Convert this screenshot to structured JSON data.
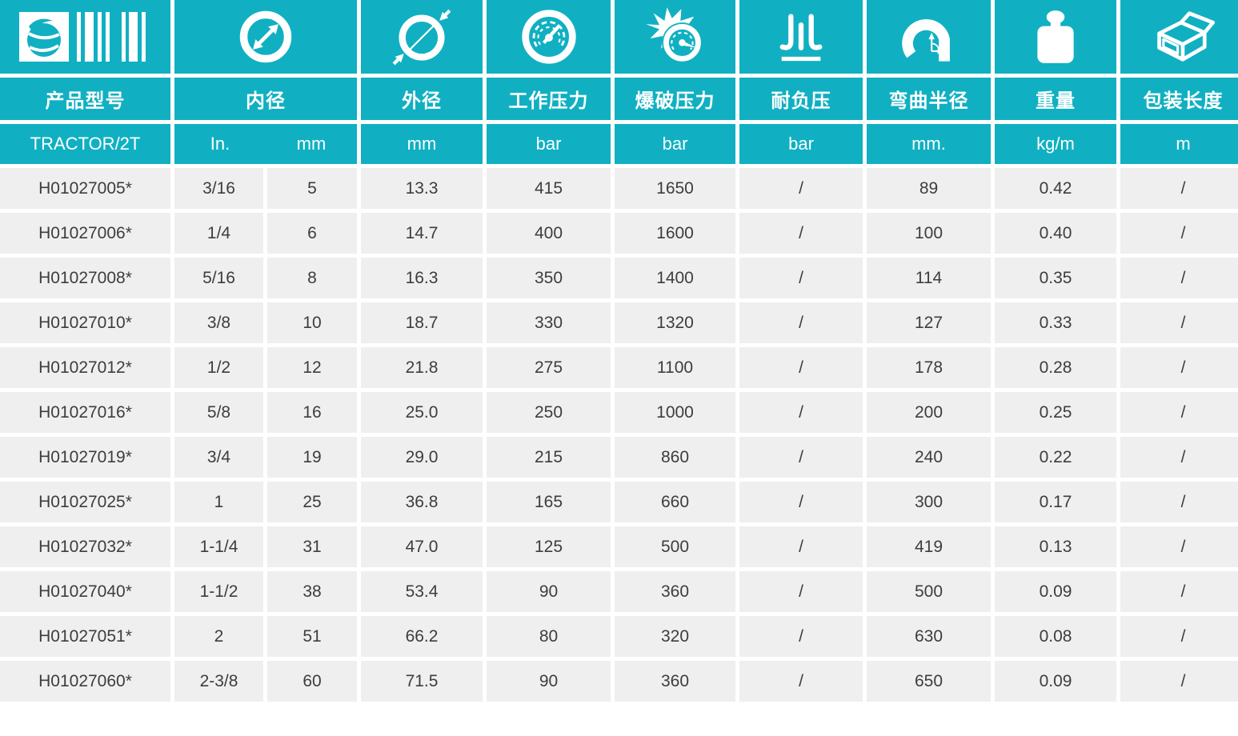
{
  "theme": {
    "accent_teal": "#10b0c2",
    "row_background": "#efefef",
    "data_text": "#3d3d3d",
    "gap_white": "#ffffff"
  },
  "columns": [
    {
      "id": "model",
      "icon": "barcode-globe-icon",
      "header": "产品型号",
      "unit": "TRACTOR/2T"
    },
    {
      "id": "inner-diameter",
      "icon": "inner-diameter-icon",
      "header": "内径",
      "unit_in": "In.",
      "unit_mm": "mm"
    },
    {
      "id": "outer-diameter",
      "icon": "outer-diameter-icon",
      "header": "外径",
      "unit": "mm"
    },
    {
      "id": "working-pressure",
      "icon": "pressure-gauge-icon",
      "header": "工作压力",
      "unit": "bar"
    },
    {
      "id": "burst-pressure",
      "icon": "burst-gauge-icon",
      "header": "爆破压力",
      "unit": "bar"
    },
    {
      "id": "vacuum-resistance",
      "icon": "vacuum-arrows-icon",
      "header": "耐负压",
      "unit": "bar"
    },
    {
      "id": "bend-radius",
      "icon": "bend-radius-icon",
      "header": "弯曲半径",
      "unit": "mm."
    },
    {
      "id": "weight",
      "icon": "weight-icon",
      "header": "重量",
      "unit": "kg/m"
    },
    {
      "id": "package-length",
      "icon": "open-box-icon",
      "header": "包装长度",
      "unit": "m"
    }
  ],
  "rows": [
    [
      "H01027005*",
      "3/16",
      "5",
      "13.3",
      "415",
      "1650",
      "/",
      "89",
      "0.42",
      "/"
    ],
    [
      "H01027006*",
      "1/4",
      "6",
      "14.7",
      "400",
      "1600",
      "/",
      "100",
      "0.40",
      "/"
    ],
    [
      "H01027008*",
      "5/16",
      "8",
      "16.3",
      "350",
      "1400",
      "/",
      "114",
      "0.35",
      "/"
    ],
    [
      "H01027010*",
      "3/8",
      "10",
      "18.7",
      "330",
      "1320",
      "/",
      "127",
      "0.33",
      "/"
    ],
    [
      "H01027012*",
      "1/2",
      "12",
      "21.8",
      "275",
      "1100",
      "/",
      "178",
      "0.28",
      "/"
    ],
    [
      "H01027016*",
      "5/8",
      "16",
      "25.0",
      "250",
      "1000",
      "/",
      "200",
      "0.25",
      "/"
    ],
    [
      "H01027019*",
      "3/4",
      "19",
      "29.0",
      "215",
      "860",
      "/",
      "240",
      "0.22",
      "/"
    ],
    [
      "H01027025*",
      "1",
      "25",
      "36.8",
      "165",
      "660",
      "/",
      "300",
      "0.17",
      "/"
    ],
    [
      "H01027032*",
      "1-1/4",
      "31",
      "47.0",
      "125",
      "500",
      "/",
      "419",
      "0.13",
      "/"
    ],
    [
      "H01027040*",
      "1-1/2",
      "38",
      "53.4",
      "90",
      "360",
      "/",
      "500",
      "0.09",
      "/"
    ],
    [
      "H01027051*",
      "2",
      "51",
      "66.2",
      "80",
      "320",
      "/",
      "630",
      "0.08",
      "/"
    ],
    [
      "H01027060*",
      "2-3/8",
      "60",
      "71.5",
      "90",
      "360",
      "/",
      "650",
      "0.09",
      "/"
    ]
  ]
}
